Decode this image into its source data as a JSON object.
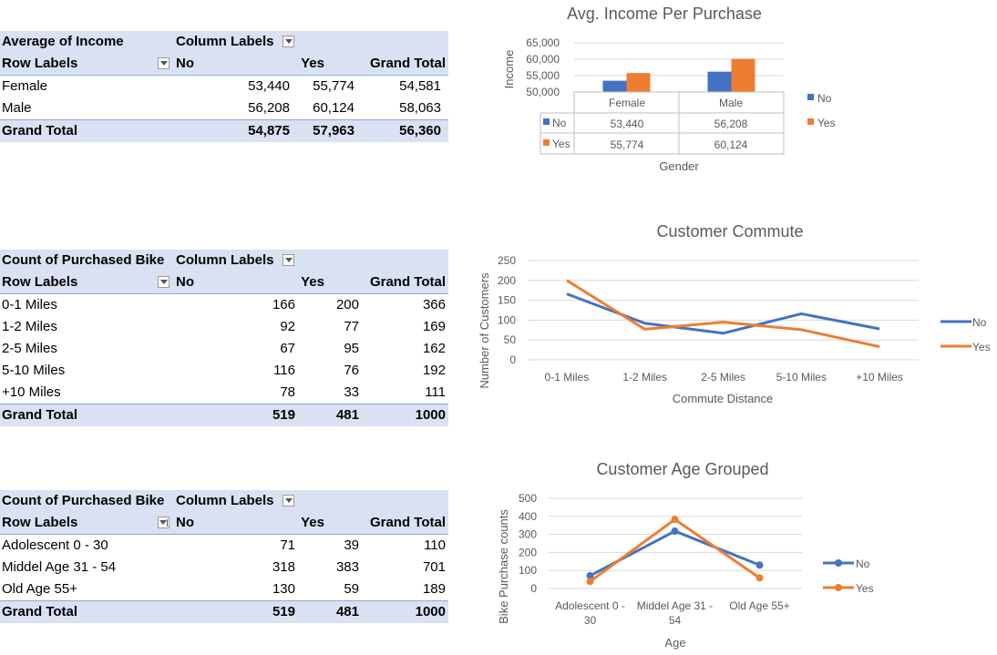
{
  "tables": [
    {
      "corner": "Average of Income",
      "col_labels": "Column Labels",
      "row_labels": "Row Labels",
      "cols": [
        "No",
        "Yes",
        "Grand Total"
      ],
      "rows": [
        {
          "label": "Female",
          "values": [
            "53,440",
            "55,774",
            "54,581"
          ]
        },
        {
          "label": "Male",
          "values": [
            "56,208",
            "60,124",
            "58,063"
          ]
        }
      ],
      "total": {
        "label": "Grand Total",
        "values": [
          "54,875",
          "57,963",
          "56,360"
        ]
      }
    },
    {
      "corner": "Count of Purchased Bike",
      "col_labels": "Column Labels",
      "row_labels": "Row Labels",
      "cols": [
        "No",
        "Yes",
        "Grand Total"
      ],
      "rows": [
        {
          "label": "0-1 Miles",
          "values": [
            "166",
            "200",
            "366"
          ]
        },
        {
          "label": "1-2 Miles",
          "values": [
            "92",
            "77",
            "169"
          ]
        },
        {
          "label": "2-5 Miles",
          "values": [
            "67",
            "95",
            "162"
          ]
        },
        {
          "label": "5-10 Miles",
          "values": [
            "116",
            "76",
            "192"
          ]
        },
        {
          "label": "+10 Miles",
          "values": [
            "78",
            "33",
            "111"
          ]
        }
      ],
      "total": {
        "label": "Grand Total",
        "values": [
          "519",
          "481",
          "1000"
        ]
      }
    },
    {
      "corner": "Count of Purchased Bike",
      "col_labels": "Column Labels",
      "row_labels": "Row Labels",
      "cols": [
        "No",
        "Yes",
        "Grand Total"
      ],
      "rows": [
        {
          "label": "Adolescent 0 - 30",
          "values": [
            "71",
            "39",
            "110"
          ]
        },
        {
          "label": "Middel Age 31 - 54",
          "values": [
            "318",
            "383",
            "701"
          ]
        },
        {
          "label": "Old Age 55+",
          "values": [
            "130",
            "59",
            "189"
          ]
        }
      ],
      "total": {
        "label": "Grand Total",
        "values": [
          "519",
          "481",
          "1000"
        ]
      }
    }
  ],
  "chart_data": [
    {
      "type": "bar",
      "title": "Avg. Income Per Purchase",
      "xlabel": "Gender",
      "ylabel": "Income",
      "categories": [
        "Female",
        "Male"
      ],
      "series": [
        {
          "name": "No",
          "values": [
            53440,
            56208
          ],
          "labels": [
            "53,440",
            "56,208"
          ]
        },
        {
          "name": "Yes",
          "values": [
            55774,
            60124
          ],
          "labels": [
            "55,774",
            "60,124"
          ]
        }
      ],
      "ylim": [
        50000,
        65000
      ],
      "yticks": [
        "50,000",
        "55,000",
        "60,000",
        "65,000"
      ],
      "data_table": true,
      "grid": true,
      "legend": "right",
      "colors": {
        "No": "#4472c4",
        "Yes": "#ed7d31"
      }
    },
    {
      "type": "line",
      "title": "Customer Commute",
      "xlabel": "Commute Distance",
      "ylabel": "Number of Customers",
      "categories": [
        "0-1 Miles",
        "1-2 Miles",
        "2-5 Miles",
        "5-10 Miles",
        "+10 Miles"
      ],
      "series": [
        {
          "name": "No",
          "values": [
            166,
            92,
            67,
            116,
            78
          ]
        },
        {
          "name": "Yes",
          "values": [
            200,
            77,
            95,
            76,
            33
          ]
        }
      ],
      "ylim": [
        0,
        250
      ],
      "yticks": [
        "0",
        "50",
        "100",
        "150",
        "200",
        "250"
      ],
      "grid": true,
      "markers": false,
      "legend": "right",
      "colors": {
        "No": "#4472c4",
        "Yes": "#ed7d31"
      }
    },
    {
      "type": "line",
      "title": "Customer Age Grouped",
      "xlabel": "Age",
      "ylabel": "Bike Purchase counts",
      "categories": [
        "Adolescent 0 - 30",
        "Middel Age 31 - 54",
        "Old Age 55+"
      ],
      "category_lines": [
        [
          "Adolescent 0 -",
          "30"
        ],
        [
          "Middel Age 31 -",
          "54"
        ],
        [
          "Old Age 55+"
        ]
      ],
      "series": [
        {
          "name": "No",
          "values": [
            71,
            318,
            130
          ]
        },
        {
          "name": "Yes",
          "values": [
            39,
            383,
            59
          ]
        }
      ],
      "ylim": [
        0,
        500
      ],
      "yticks": [
        "0",
        "100",
        "200",
        "300",
        "400",
        "500"
      ],
      "grid": true,
      "markers": true,
      "legend": "right",
      "colors": {
        "No": "#4472c4",
        "Yes": "#ed7d31"
      }
    }
  ]
}
